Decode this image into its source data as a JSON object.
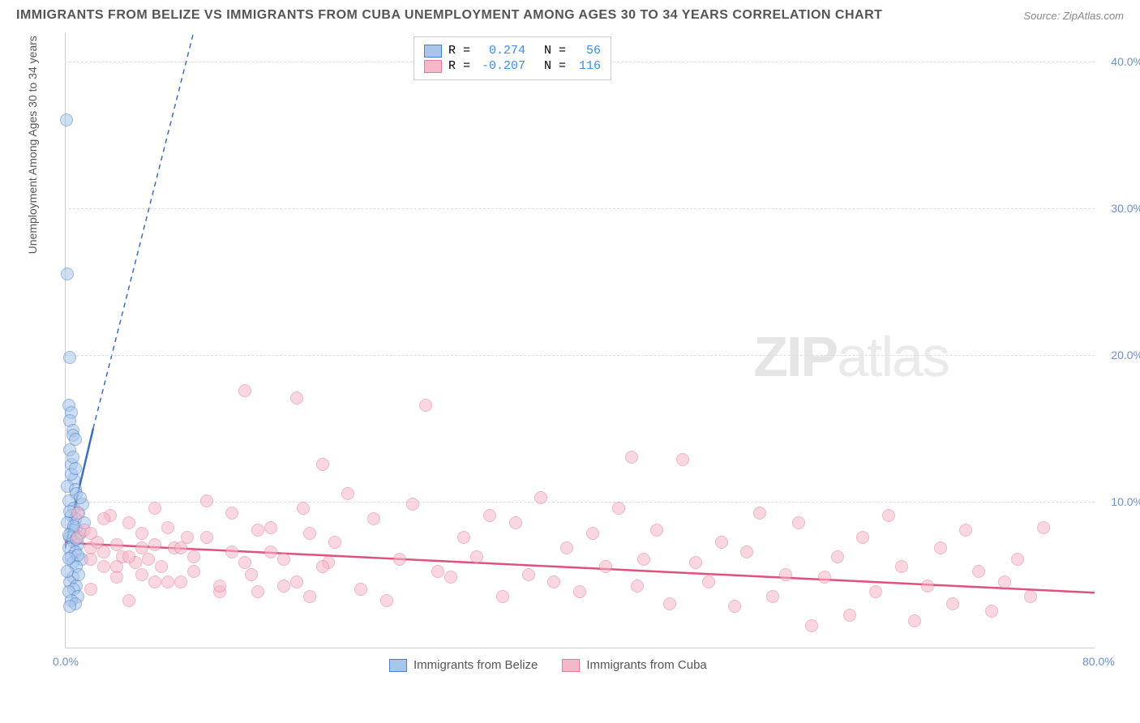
{
  "title": "IMMIGRANTS FROM BELIZE VS IMMIGRANTS FROM CUBA UNEMPLOYMENT AMONG AGES 30 TO 34 YEARS CORRELATION CHART",
  "source": "Source: ZipAtlas.com",
  "watermark_a": "ZIP",
  "watermark_b": "atlas",
  "chart": {
    "type": "scatter",
    "xlim": [
      0,
      80
    ],
    "ylim": [
      0,
      42
    ],
    "x_ticks": [
      {
        "v": 0,
        "l": "0.0%"
      },
      {
        "v": 80,
        "l": "80.0%"
      }
    ],
    "y_ticks": [
      {
        "v": 10,
        "l": "10.0%"
      },
      {
        "v": 20,
        "l": "20.0%"
      },
      {
        "v": 30,
        "l": "30.0%"
      },
      {
        "v": 40,
        "l": "40.0%"
      }
    ],
    "y_label": "Unemployment Among Ages 30 to 34 years",
    "grid_color": "#dddddd",
    "axis_color": "#cccccc",
    "background_color": "#ffffff",
    "marker_radius": 8,
    "series": [
      {
        "name": "Immigrants from Belize",
        "fill": "#a8c5eb",
        "stroke": "#4a7fc9",
        "R": "0.274",
        "N": "56",
        "trend": {
          "x1": 0,
          "y1": 6.8,
          "x2": 2.2,
          "y2": 15,
          "dash_x2": 10,
          "dash_y2": 42,
          "color": "#3d6fb8",
          "width": 2.5
        },
        "points": [
          [
            0.1,
            36
          ],
          [
            0.2,
            25.5
          ],
          [
            0.4,
            19.8
          ],
          [
            0.3,
            16.5
          ],
          [
            0.5,
            16
          ],
          [
            0.4,
            15.5
          ],
          [
            0.6,
            14.8
          ],
          [
            0.6,
            14.5
          ],
          [
            0.8,
            14.2
          ],
          [
            0.4,
            13.5
          ],
          [
            0.5,
            12.5
          ],
          [
            0.7,
            11.5
          ],
          [
            0.2,
            11
          ],
          [
            0.8,
            10.8
          ],
          [
            0.9,
            10.5
          ],
          [
            0.3,
            10
          ],
          [
            0.7,
            9.5
          ],
          [
            1.1,
            9.2
          ],
          [
            0.5,
            9
          ],
          [
            0.8,
            8.8
          ],
          [
            0.2,
            8.5
          ],
          [
            0.9,
            8.2
          ],
          [
            0.6,
            8
          ],
          [
            1.2,
            7.8
          ],
          [
            0.4,
            7.5
          ],
          [
            0.7,
            7.2
          ],
          [
            1.0,
            7
          ],
          [
            0.3,
            6.8
          ],
          [
            0.8,
            6.5
          ],
          [
            0.5,
            6.2
          ],
          [
            1.3,
            6
          ],
          [
            0.6,
            4.8
          ],
          [
            0.4,
            4.5
          ],
          [
            0.9,
            4.2
          ],
          [
            0.7,
            4
          ],
          [
            0.3,
            3.8
          ],
          [
            1.0,
            3.5
          ],
          [
            0.5,
            3.2
          ],
          [
            0.8,
            3
          ],
          [
            0.4,
            2.8
          ],
          [
            0.6,
            5.8
          ],
          [
            0.9,
            5.5
          ],
          [
            0.2,
            5.2
          ],
          [
            1.1,
            5
          ],
          [
            0.7,
            8.3
          ],
          [
            1.4,
            9.8
          ],
          [
            0.3,
            7.7
          ],
          [
            1.0,
            6.3
          ],
          [
            0.5,
            11.8
          ],
          [
            1.2,
            10.2
          ],
          [
            0.4,
            9.3
          ],
          [
            0.8,
            12.2
          ],
          [
            0.6,
            13
          ],
          [
            1.5,
            8.5
          ],
          [
            0.9,
            7.4
          ],
          [
            0.3,
            6.1
          ]
        ]
      },
      {
        "name": "Immigrants from Cuba",
        "fill": "#f5b8c8",
        "stroke": "#e67a9a",
        "R": "-0.207",
        "N": "116",
        "trend": {
          "x1": 0,
          "y1": 7.2,
          "x2": 80,
          "y2": 3.8,
          "color": "#e0517c",
          "width": 2.5
        },
        "points": [
          [
            1,
            7.5
          ],
          [
            1.5,
            8
          ],
          [
            2,
            6.8
          ],
          [
            2.5,
            7.2
          ],
          [
            3,
            6.5
          ],
          [
            3.5,
            9
          ],
          [
            4,
            7
          ],
          [
            4.5,
            6.2
          ],
          [
            5,
            8.5
          ],
          [
            5.5,
            5.8
          ],
          [
            6,
            7.8
          ],
          [
            6.5,
            6
          ],
          [
            7,
            9.5
          ],
          [
            7.5,
            5.5
          ],
          [
            8,
            8.2
          ],
          [
            8.5,
            6.8
          ],
          [
            9,
            4.5
          ],
          [
            9.5,
            7.5
          ],
          [
            10,
            6.2
          ],
          [
            11,
            10
          ],
          [
            12,
            3.8
          ],
          [
            13,
            9.2
          ],
          [
            14,
            17.5
          ],
          [
            14.5,
            5
          ],
          [
            15,
            8
          ],
          [
            16,
            6.5
          ],
          [
            17,
            4.2
          ],
          [
            18,
            17
          ],
          [
            18.5,
            9.5
          ],
          [
            19,
            3.5
          ],
          [
            20,
            12.5
          ],
          [
            20.5,
            5.8
          ],
          [
            21,
            7.2
          ],
          [
            22,
            10.5
          ],
          [
            23,
            4
          ],
          [
            24,
            8.8
          ],
          [
            25,
            3.2
          ],
          [
            26,
            6
          ],
          [
            27,
            9.8
          ],
          [
            28,
            16.5
          ],
          [
            29,
            5.2
          ],
          [
            30,
            4.8
          ],
          [
            31,
            7.5
          ],
          [
            32,
            6.2
          ],
          [
            33,
            9
          ],
          [
            34,
            3.5
          ],
          [
            35,
            8.5
          ],
          [
            36,
            5
          ],
          [
            37,
            10.2
          ],
          [
            38,
            4.5
          ],
          [
            39,
            6.8
          ],
          [
            40,
            3.8
          ],
          [
            41,
            7.8
          ],
          [
            42,
            5.5
          ],
          [
            43,
            9.5
          ],
          [
            44,
            13
          ],
          [
            44.5,
            4.2
          ],
          [
            45,
            6
          ],
          [
            46,
            8
          ],
          [
            47,
            3
          ],
          [
            48,
            12.8
          ],
          [
            49,
            5.8
          ],
          [
            50,
            4.5
          ],
          [
            51,
            7.2
          ],
          [
            52,
            2.8
          ],
          [
            53,
            6.5
          ],
          [
            54,
            9.2
          ],
          [
            55,
            3.5
          ],
          [
            56,
            5
          ],
          [
            57,
            8.5
          ],
          [
            58,
            1.5
          ],
          [
            59,
            4.8
          ],
          [
            60,
            6.2
          ],
          [
            61,
            2.2
          ],
          [
            62,
            7.5
          ],
          [
            63,
            3.8
          ],
          [
            64,
            9
          ],
          [
            65,
            5.5
          ],
          [
            66,
            1.8
          ],
          [
            67,
            4.2
          ],
          [
            68,
            6.8
          ],
          [
            69,
            3
          ],
          [
            70,
            8
          ],
          [
            71,
            5.2
          ],
          [
            72,
            2.5
          ],
          [
            73,
            4.5
          ],
          [
            74,
            6
          ],
          [
            75,
            3.5
          ],
          [
            76,
            8.2
          ],
          [
            2,
            6
          ],
          [
            3,
            5.5
          ],
          [
            4,
            4.8
          ],
          [
            5,
            6.2
          ],
          [
            6,
            5
          ],
          [
            7,
            7
          ],
          [
            8,
            4.5
          ],
          [
            9,
            6.8
          ],
          [
            10,
            5.2
          ],
          [
            11,
            7.5
          ],
          [
            12,
            4.2
          ],
          [
            13,
            6.5
          ],
          [
            14,
            5.8
          ],
          [
            15,
            3.8
          ],
          [
            16,
            8.2
          ],
          [
            17,
            6
          ],
          [
            18,
            4.5
          ],
          [
            19,
            7.8
          ],
          [
            20,
            5.5
          ],
          [
            1,
            9.2
          ],
          [
            2,
            4
          ],
          [
            3,
            8.8
          ],
          [
            4,
            5.5
          ],
          [
            5,
            3.2
          ],
          [
            6,
            6.8
          ],
          [
            7,
            4.5
          ],
          [
            2,
            7.8
          ]
        ]
      }
    ],
    "legend_top": {
      "R_label": "R =",
      "N_label": "N =",
      "value_color": "#3d8de0"
    }
  }
}
